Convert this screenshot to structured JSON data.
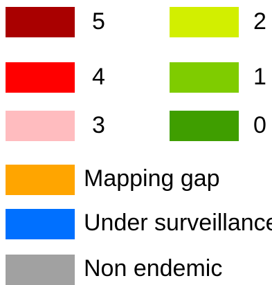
{
  "legend": {
    "items": [
      {
        "label": "5",
        "color": "#a90000"
      },
      {
        "label": "2",
        "color": "#d2ef00"
      },
      {
        "label": "4",
        "color": "#ff0000"
      },
      {
        "label": "1",
        "color": "#7fcc00"
      },
      {
        "label": "3",
        "color": "#ffbcbf"
      },
      {
        "label": "0",
        "color": "#3f9e00"
      },
      {
        "label": "Mapping gap",
        "color": "#ffa500"
      },
      {
        "label": "Under surveillance",
        "color": "#0070ff"
      },
      {
        "label": "Non endemic",
        "color": "#a1a1a1"
      }
    ]
  }
}
